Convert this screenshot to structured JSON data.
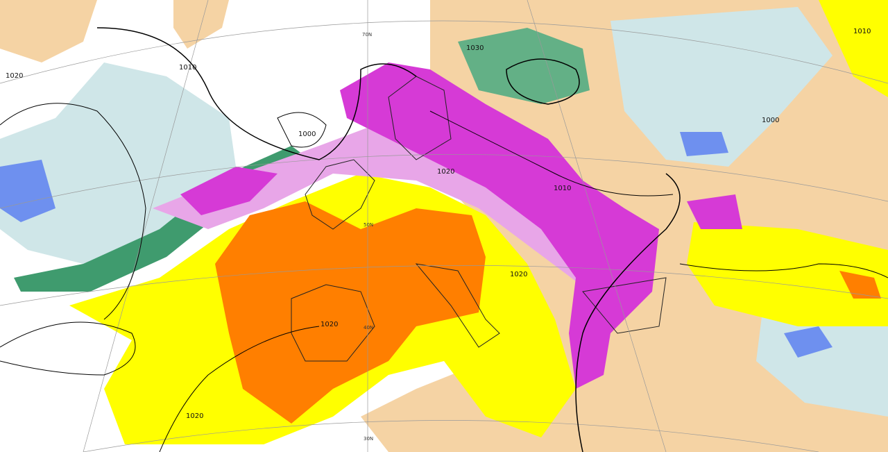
{
  "isobar_labels": [
    "1020",
    "1010",
    "1000",
    "1020",
    "1010",
    "1020",
    "1020",
    "1020",
    "1000",
    "1010",
    "1030"
  ],
  "latitude_labels": [
    "70N",
    "50N",
    "40N",
    "30N"
  ]
}
